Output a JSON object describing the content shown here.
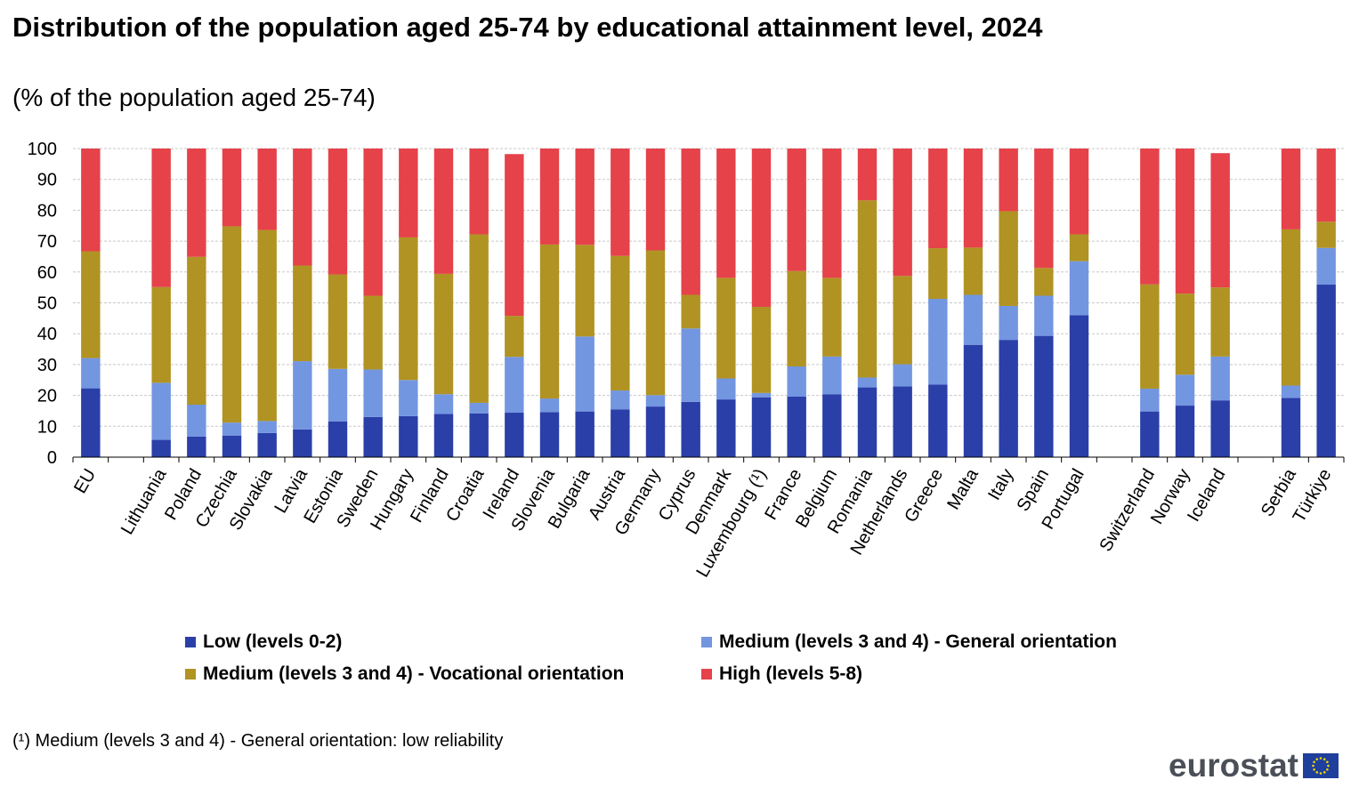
{
  "title": "Distribution of the population aged 25-74 by educational attainment level, 2024",
  "subtitle": "(% of the population aged 25-74)",
  "footnote": "(¹) Medium (levels 3 and 4) - General orientation: low reliability",
  "logo_text": "eurostat",
  "chart_data": {
    "type": "bar",
    "stacked": true,
    "ylim": [
      0,
      100
    ],
    "yticks": [
      0,
      10,
      20,
      30,
      40,
      50,
      60,
      70,
      80,
      90,
      100
    ],
    "grid": true,
    "legend_position": "bottom",
    "categories": [
      "EU",
      "Lithuania",
      "Poland",
      "Czechia",
      "Slovakia",
      "Latvia",
      "Estonia",
      "Sweden",
      "Hungary",
      "Finland",
      "Croatia",
      "Ireland",
      "Slovenia",
      "Bulgaria",
      "Austria",
      "Germany",
      "Cyprus",
      "Denmark",
      "Luxembourg (¹)",
      "France",
      "Belgium",
      "Romania",
      "Netherlands",
      "Greece",
      "Malta",
      "Italy",
      "Spain",
      "Portugal",
      "Switzerland",
      "Norway",
      "Iceland",
      "Serbia",
      "Türkiye"
    ],
    "groups": [
      [
        0
      ],
      [
        1,
        2,
        3,
        4,
        5,
        6,
        7,
        8,
        9,
        10,
        11,
        12,
        13,
        14,
        15,
        16,
        17,
        18,
        19,
        20,
        21,
        22,
        23,
        24,
        25,
        26,
        27
      ],
      [
        28,
        29,
        30
      ],
      [
        31,
        32
      ]
    ],
    "series": [
      {
        "name": "Low (levels 0-2)",
        "color": "#2a3fa8",
        "values": [
          22.3,
          5.6,
          6.7,
          7.0,
          7.8,
          9.0,
          11.6,
          13.0,
          13.3,
          14.0,
          14.2,
          14.4,
          14.6,
          14.8,
          15.5,
          16.4,
          17.9,
          18.7,
          19.4,
          19.6,
          20.4,
          22.6,
          22.9,
          23.5,
          36.4,
          38.0,
          39.3,
          46.0,
          14.8,
          16.7,
          18.4,
          19.2,
          55.9
        ]
      },
      {
        "name": "Medium (levels 3 and 4) - General orientation",
        "color": "#7396e1",
        "values": [
          9.8,
          18.5,
          10.3,
          4.2,
          3.9,
          22.1,
          17.0,
          15.4,
          11.7,
          6.4,
          3.4,
          18.1,
          4.4,
          24.3,
          6.1,
          3.7,
          23.8,
          6.8,
          1.4,
          9.8,
          12.2,
          3.2,
          7.2,
          27.8,
          16.2,
          11.0,
          13.0,
          17.5,
          7.4,
          10.0,
          14.2,
          4.0,
          11.9
        ]
      },
      {
        "name": "Medium (levels 3 and 4) - Vocational orientation",
        "color": "#b09322",
        "values": [
          34.6,
          31.0,
          47.9,
          63.6,
          61.9,
          31.0,
          30.6,
          23.9,
          46.2,
          39.0,
          54.6,
          13.3,
          49.9,
          29.7,
          43.6,
          46.9,
          10.9,
          32.6,
          27.9,
          30.9,
          25.5,
          57.4,
          28.6,
          16.4,
          15.3,
          30.7,
          9.0,
          8.7,
          33.8,
          26.3,
          22.4,
          50.6,
          8.5
        ]
      },
      {
        "name": "High (levels 5-8)",
        "color": "#e5424a",
        "values": [
          33.3,
          44.9,
          35.1,
          25.2,
          26.4,
          37.9,
          40.8,
          47.7,
          28.8,
          40.6,
          27.8,
          52.4,
          31.1,
          31.2,
          34.8,
          33.0,
          47.4,
          41.9,
          51.3,
          39.7,
          41.9,
          16.8,
          41.3,
          32.3,
          32.1,
          20.3,
          38.7,
          27.8,
          44.0,
          47.0,
          43.5,
          26.2,
          23.7
        ]
      }
    ]
  }
}
